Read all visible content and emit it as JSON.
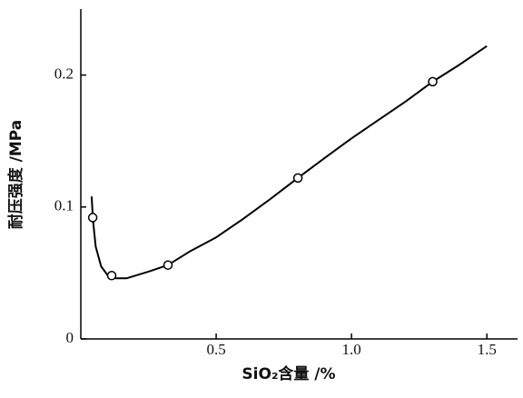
{
  "chart_data": {
    "type": "line",
    "x_label": "SiO₂含量 /%",
    "y_label": "耐压强度 /MPa",
    "xlim": [
      0,
      1.6
    ],
    "ylim": [
      0,
      0.25
    ],
    "xticks": [
      0.5,
      {
        "value": 1.0,
        "label": "1.0"
      },
      1.5
    ],
    "yticks": [
      0,
      0.1,
      0.2
    ],
    "series": [
      {
        "color": "#000000",
        "marker": false,
        "x": [
          0.04,
          0.045,
          0.055,
          0.075,
          0.1,
          0.13,
          0.17,
          0.25,
          0.322,
          0.4,
          0.5,
          0.6,
          0.7,
          0.802,
          0.9,
          1.0,
          1.1,
          1.2,
          1.3,
          1.4,
          1.5
        ],
        "values": [
          0.108,
          0.09,
          0.07,
          0.055,
          0.048,
          0.046,
          0.046,
          0.051,
          0.056,
          0.066,
          0.077,
          0.091,
          0.106,
          0.122,
          0.137,
          0.152,
          0.166,
          0.18,
          0.195,
          0.208,
          0.222
        ]
      },
      {
        "color": "#000000",
        "marker": true,
        "line": false,
        "x": [
          0.044,
          0.114,
          0.322,
          0.802,
          1.3
        ],
        "values": [
          0.092,
          0.048,
          0.056,
          0.122,
          0.195
        ]
      }
    ]
  }
}
